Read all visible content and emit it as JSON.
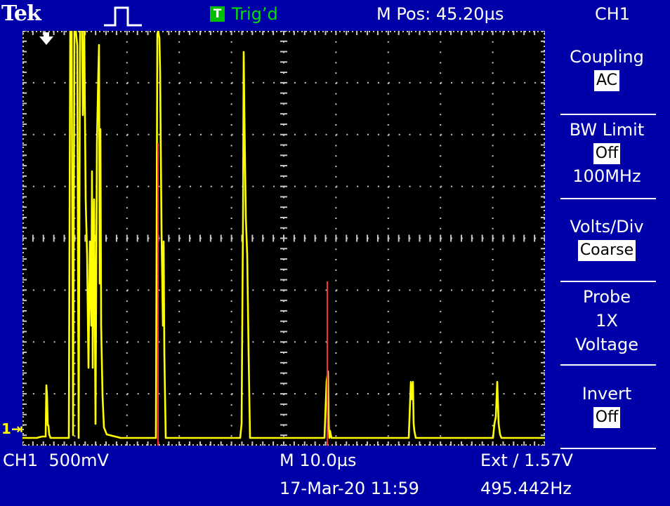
{
  "header": {
    "brand": "Tek",
    "trigger_icon_letter": "T",
    "trigger_status": "Trig’d",
    "main_position": "M Pos: 45.20µs",
    "menu_channel": "CH1"
  },
  "side_menu": {
    "items": [
      {
        "title": "Coupling",
        "value": "AC"
      },
      {
        "title": "BW Limit",
        "value": "Off",
        "extra": "100MHz"
      },
      {
        "title": "Volts/Div",
        "value": "Coarse"
      },
      {
        "title": "Probe",
        "line2": "1X",
        "line3": "Voltage"
      },
      {
        "title": "Invert",
        "value": "Off"
      }
    ]
  },
  "status": {
    "channel_marker": "1",
    "channel_scale": "CH1  500mV",
    "timebase": "M 10.0µs",
    "trigger_info": "Ext ∕ 1.57V",
    "datetime": "17-Mar-20 11:59",
    "frequency": "495.442Hz"
  },
  "colors": {
    "background": "#0000a8",
    "trace": "#ffff00",
    "cursor": "#ff2a2a",
    "trig_green": "#00e000"
  },
  "icons": {
    "trigger_level_arrow": "down-arrow-icon",
    "pulse": "pulse-icon"
  }
}
